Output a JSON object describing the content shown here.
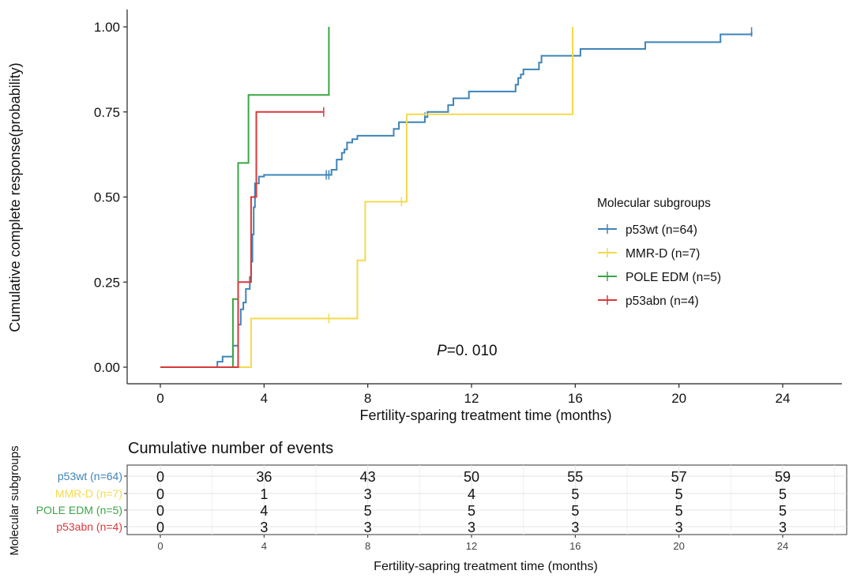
{
  "chart_data": {
    "type": "line",
    "subtype": "kaplan-meier-step",
    "xlabel": "Fertility-sparing treatment time (months)",
    "ylabel": "Cumulative complete response(probability)",
    "xlim": [
      -3,
      26
    ],
    "ylim": [
      -0.05,
      1.05
    ],
    "x_ticks": [
      0,
      4,
      8,
      12,
      16,
      20,
      24
    ],
    "x_tick_labels": [
      "0",
      "4",
      "8",
      "12",
      "16",
      "20",
      "24"
    ],
    "y_ticks": [
      0,
      0.25,
      0.5,
      0.75,
      1.0
    ],
    "y_tick_labels": [
      "0.00",
      "0.25",
      "0.50",
      "0.75",
      "1.00"
    ],
    "grid": false,
    "annotation": {
      "italic": "P",
      "rest": "=0. 010"
    },
    "legend": {
      "title": "Molecular subgroups",
      "position": "right"
    },
    "series": [
      {
        "name": "p53wt (n=64)",
        "color": "#3d84b8",
        "points": [
          [
            0,
            0
          ],
          [
            2.2,
            0
          ],
          [
            2.2,
            0.016
          ],
          [
            2.4,
            0.016
          ],
          [
            2.4,
            0.031
          ],
          [
            2.8,
            0.031
          ],
          [
            2.8,
            0.063
          ],
          [
            3.0,
            0.063
          ],
          [
            3.0,
            0.125
          ],
          [
            3.1,
            0.125
          ],
          [
            3.1,
            0.17
          ],
          [
            3.2,
            0.17
          ],
          [
            3.2,
            0.19
          ],
          [
            3.3,
            0.19
          ],
          [
            3.3,
            0.23
          ],
          [
            3.45,
            0.23
          ],
          [
            3.45,
            0.265
          ],
          [
            3.5,
            0.265
          ],
          [
            3.5,
            0.31
          ],
          [
            3.55,
            0.31
          ],
          [
            3.55,
            0.39
          ],
          [
            3.6,
            0.39
          ],
          [
            3.6,
            0.47
          ],
          [
            3.65,
            0.47
          ],
          [
            3.65,
            0.54
          ],
          [
            3.8,
            0.54
          ],
          [
            3.8,
            0.56
          ],
          [
            4.0,
            0.56
          ],
          [
            4.0,
            0.565
          ],
          [
            6.6,
            0.565
          ],
          [
            6.6,
            0.58
          ],
          [
            6.8,
            0.58
          ],
          [
            6.8,
            0.61
          ],
          [
            7.0,
            0.61
          ],
          [
            7.0,
            0.63
          ],
          [
            7.1,
            0.63
          ],
          [
            7.1,
            0.64
          ],
          [
            7.2,
            0.64
          ],
          [
            7.2,
            0.66
          ],
          [
            7.4,
            0.66
          ],
          [
            7.4,
            0.67
          ],
          [
            7.6,
            0.67
          ],
          [
            7.6,
            0.68
          ],
          [
            9.0,
            0.68
          ],
          [
            9.0,
            0.7
          ],
          [
            9.2,
            0.7
          ],
          [
            9.2,
            0.72
          ],
          [
            10.2,
            0.72
          ],
          [
            10.2,
            0.735
          ],
          [
            10.3,
            0.735
          ],
          [
            10.3,
            0.75
          ],
          [
            11.1,
            0.75
          ],
          [
            11.1,
            0.77
          ],
          [
            11.3,
            0.77
          ],
          [
            11.3,
            0.79
          ],
          [
            11.9,
            0.79
          ],
          [
            11.9,
            0.81
          ],
          [
            13.7,
            0.81
          ],
          [
            13.7,
            0.83
          ],
          [
            13.8,
            0.83
          ],
          [
            13.8,
            0.85
          ],
          [
            13.9,
            0.85
          ],
          [
            13.9,
            0.86
          ],
          [
            14.0,
            0.86
          ],
          [
            14.0,
            0.875
          ],
          [
            14.6,
            0.875
          ],
          [
            14.6,
            0.895
          ],
          [
            14.7,
            0.895
          ],
          [
            14.7,
            0.915
          ],
          [
            16.2,
            0.915
          ],
          [
            16.2,
            0.935
          ],
          [
            18.7,
            0.935
          ],
          [
            18.7,
            0.955
          ],
          [
            21.6,
            0.955
          ],
          [
            21.6,
            0.978
          ],
          [
            22.8,
            0.978
          ],
          [
            22.8,
            0.985
          ]
        ],
        "censor": [
          [
            6.4,
            0.565
          ],
          [
            6.5,
            0.565
          ],
          [
            10.2,
            0.735
          ],
          [
            22.8,
            0.985
          ]
        ]
      },
      {
        "name": "MMR-D (n=7)",
        "color": "#f5d94c",
        "points": [
          [
            0,
            0
          ],
          [
            3.5,
            0
          ],
          [
            3.5,
            0.143
          ],
          [
            7.6,
            0.143
          ],
          [
            7.6,
            0.314
          ],
          [
            7.9,
            0.314
          ],
          [
            7.9,
            0.486
          ],
          [
            9.5,
            0.486
          ],
          [
            9.5,
            0.743
          ],
          [
            15.9,
            0.743
          ],
          [
            15.9,
            1.0
          ]
        ],
        "censor": [
          [
            6.5,
            0.143
          ],
          [
            9.3,
            0.486
          ]
        ]
      },
      {
        "name": "POLE EDM (n=5)",
        "color": "#3aa544",
        "points": [
          [
            0,
            0
          ],
          [
            2.8,
            0
          ],
          [
            2.8,
            0.2
          ],
          [
            3.0,
            0.2
          ],
          [
            3.0,
            0.6
          ],
          [
            3.4,
            0.6
          ],
          [
            3.4,
            0.8
          ],
          [
            6.5,
            0.8
          ],
          [
            6.5,
            1.0
          ]
        ],
        "censor": []
      },
      {
        "name": "p53abn (n=4)",
        "color": "#d9383a",
        "points": [
          [
            0,
            0
          ],
          [
            3.0,
            0
          ],
          [
            3.0,
            0.25
          ],
          [
            3.5,
            0.25
          ],
          [
            3.5,
            0.5
          ],
          [
            3.7,
            0.5
          ],
          [
            3.7,
            0.75
          ],
          [
            6.3,
            0.75
          ]
        ],
        "censor": [
          [
            6.3,
            0.75
          ]
        ]
      }
    ],
    "risk_table": {
      "title": "Cumulative number of events",
      "ylabel": "Molecular subgroups",
      "xlabel": "Fertility-sapring treatment time (months)",
      "times": [
        "0",
        "4",
        "8",
        "12",
        "16",
        "20",
        "24"
      ],
      "rows": [
        {
          "label": "p53wt (n=64)",
          "values": [
            "0",
            "36",
            "43",
            "50",
            "55",
            "57",
            "59"
          ]
        },
        {
          "label": "MMR-D (n=7)",
          "values": [
            "0",
            "1",
            "3",
            "4",
            "5",
            "5",
            "5"
          ]
        },
        {
          "label": "POLE EDM (n=5)",
          "values": [
            "0",
            "4",
            "5",
            "5",
            "5",
            "5",
            "5"
          ]
        },
        {
          "label": "p53abn (n=4)",
          "values": [
            "0",
            "3",
            "3",
            "3",
            "3",
            "3",
            "3"
          ]
        }
      ]
    }
  }
}
